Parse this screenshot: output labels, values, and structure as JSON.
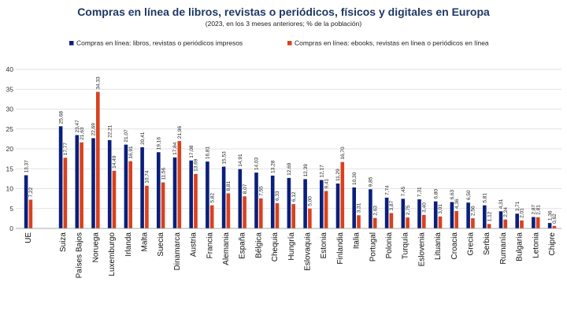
{
  "chart_data": {
    "type": "bar",
    "title": "Compras en línea de libros, revistas o periódicos, físicos y digitales en Europa",
    "subtitle": "(2023, en los 3 meses anteriores; % de la población)",
    "categories": [
      "UE",
      "Suiza",
      "Países Bajos",
      "Noruega",
      "Luxemburgo",
      "Irlanda",
      "Malta",
      "Suecia",
      "Dinamarca",
      "Austria",
      "Francia",
      "Alemania",
      "España",
      "Bélgica",
      "Chequia",
      "Hungría",
      "Eslovaquia",
      "Estonia",
      "Finlandia",
      "Italia",
      "Portugal",
      "Polonia",
      "Turquía",
      "Eslovenia",
      "Lituania",
      "Croacia",
      "Grecia",
      "Serbia",
      "Rumanía",
      "Bulgaria",
      "Letonia",
      "Chipre"
    ],
    "series": [
      {
        "name": "Compras en línea: libros, revistas o periódicos impresos",
        "color": "#0b1f7a",
        "values": [
          13.37,
          25.68,
          23.47,
          22.69,
          22.21,
          21.07,
          20.41,
          19.16,
          17.84,
          17.08,
          16.81,
          15.53,
          14.91,
          14.03,
          13.28,
          12.69,
          12.39,
          12.17,
          11.29,
          10.3,
          9.85,
          7.74,
          7.45,
          7.31,
          6.8,
          6.63,
          6.5,
          5.81,
          4.31,
          3.71,
          2.87,
          1.36
        ],
        "labels": [
          "13,37",
          "25,68",
          "23,47",
          "22,69",
          "22,21",
          "21,07",
          "20,41",
          "19,16",
          "17,84",
          "17,08",
          "16,81",
          "15,53",
          "14,91",
          "14,03",
          "13,28",
          "12,69",
          "12,39",
          "12,17",
          "11,29",
          "10,30",
          "9,85",
          "7,74",
          "7,45",
          "7,31",
          "6,80",
          "6,63",
          "6,50",
          "5,81",
          "4,31",
          "3,71",
          "2,87",
          "1,36"
        ]
      },
      {
        "name": "Compras en línea: ebooks, revistas en línea o periódicos en línea",
        "color": "#d9411e",
        "values": [
          7.22,
          17.77,
          21.63,
          34.33,
          14.49,
          16.91,
          10.74,
          11.56,
          21.96,
          13.69,
          5.82,
          8.81,
          8.07,
          7.55,
          6.33,
          6.12,
          5.0,
          9.41,
          16.7,
          3.31,
          2.63,
          3.87,
          2.75,
          3.4,
          3.01,
          4.36,
          2.56,
          1.12,
          2.24,
          2.01,
          2.81,
          0.62
        ],
        "labels": [
          "7,22",
          "17,77",
          "21,63",
          "34,33",
          "14,49",
          "16,91",
          "10,74",
          "11,56",
          "21,96",
          "13,69",
          "5,82",
          "8,81",
          "8,07",
          "7,55",
          "6,33",
          "6,12",
          "5,00",
          "9,41",
          "16,70",
          "3,31",
          "2,63",
          "3,87",
          "2,75",
          "3,40",
          "3,01",
          "4,36",
          "2,56",
          "1,12",
          "2,24",
          "2,01",
          "2,81",
          "0,62"
        ]
      }
    ],
    "ylim": [
      0,
      40
    ],
    "yticks": [
      0,
      5,
      10,
      15,
      20,
      25,
      30,
      35,
      40
    ],
    "grid": true,
    "legend_position": "top"
  }
}
